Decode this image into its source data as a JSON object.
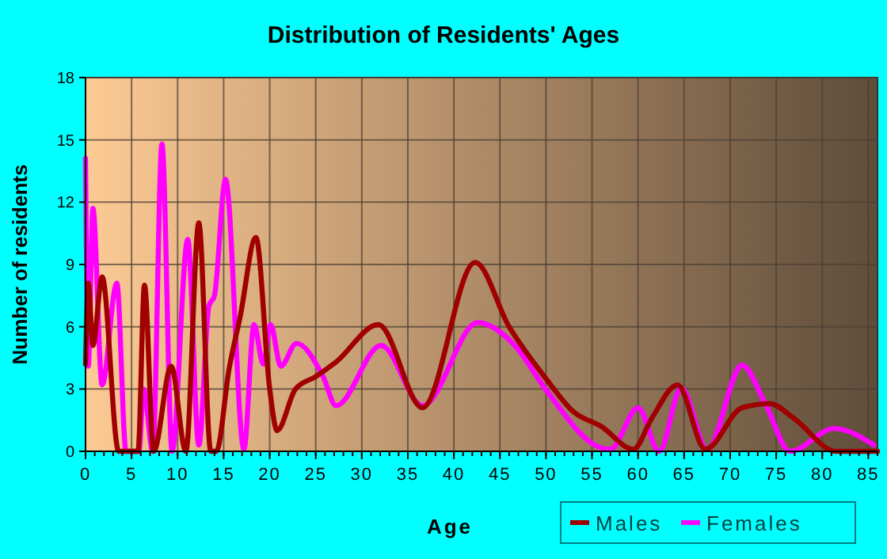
{
  "chart_data": {
    "type": "line",
    "title": "Distribution of Residents' Ages",
    "xlabel": "Age",
    "ylabel": "Number of residents",
    "xlim": [
      0,
      86
    ],
    "xticks": [
      0,
      5,
      10,
      15,
      20,
      25,
      30,
      35,
      40,
      45,
      50,
      55,
      60,
      65,
      70,
      75,
      80,
      85
    ],
    "ylim": [
      0,
      18
    ],
    "yticks": [
      0,
      3,
      6,
      9,
      12,
      15,
      18
    ],
    "grid": true,
    "legend": "bottom right",
    "marker": "none",
    "line_style": "solid",
    "series": [
      {
        "name": "Males",
        "color": "#a00000",
        "x": [
          0,
          0.3,
          0.8,
          1.8,
          3.6,
          5.7,
          6.4,
          7.4,
          9.3,
          10.9,
          12.3,
          13.6,
          14.2,
          15.6,
          16.8,
          18.5,
          20,
          20.8,
          22.8,
          25,
          27.2,
          31.8,
          36.6,
          42.3,
          46,
          50,
          53,
          56,
          59.5,
          61.5,
          64.3,
          67.3,
          71.3,
          74.3,
          76.9,
          81.5,
          86
        ],
        "values": [
          4.2,
          8.1,
          5.1,
          8.4,
          0,
          0,
          8,
          0,
          4.1,
          0,
          11,
          0,
          0,
          4,
          6.5,
          10.3,
          3,
          1,
          3,
          3.6,
          4.3,
          6.1,
          2.1,
          9.1,
          6,
          3.5,
          1.9,
          1.2,
          0.1,
          1.6,
          3.2,
          0.1,
          2.1,
          2.3,
          1.6,
          0,
          0
        ]
      },
      {
        "name": "Females",
        "color": "#ff00ff",
        "x": [
          0,
          0.3,
          0.8,
          1.8,
          3.4,
          4.4,
          5.8,
          6.3,
          7.3,
          8.3,
          9.4,
          11.1,
          12.3,
          13.4,
          14,
          15.2,
          17.2,
          18.3,
          19.3,
          20.1,
          21.2,
          22.9,
          25.8,
          27.2,
          32.1,
          36.6,
          42.6,
          46.6,
          50.1,
          55.8,
          57,
          60,
          62.3,
          64.7,
          67.5,
          71.3,
          73.9,
          76.5,
          81.3,
          85.6
        ],
        "values": [
          14.1,
          4.1,
          11.7,
          3.2,
          8.1,
          0,
          0,
          3,
          0,
          14.8,
          0,
          10.2,
          0.3,
          7,
          7.5,
          13.1,
          0.1,
          6.1,
          4.2,
          6.1,
          4.1,
          5.2,
          3.6,
          2.2,
          5.1,
          2.2,
          6.2,
          5.1,
          2.9,
          0.2,
          0.1,
          2.1,
          0,
          3.05,
          0.1,
          4.15,
          2.2,
          0,
          1.1,
          0.3
        ]
      }
    ]
  }
}
